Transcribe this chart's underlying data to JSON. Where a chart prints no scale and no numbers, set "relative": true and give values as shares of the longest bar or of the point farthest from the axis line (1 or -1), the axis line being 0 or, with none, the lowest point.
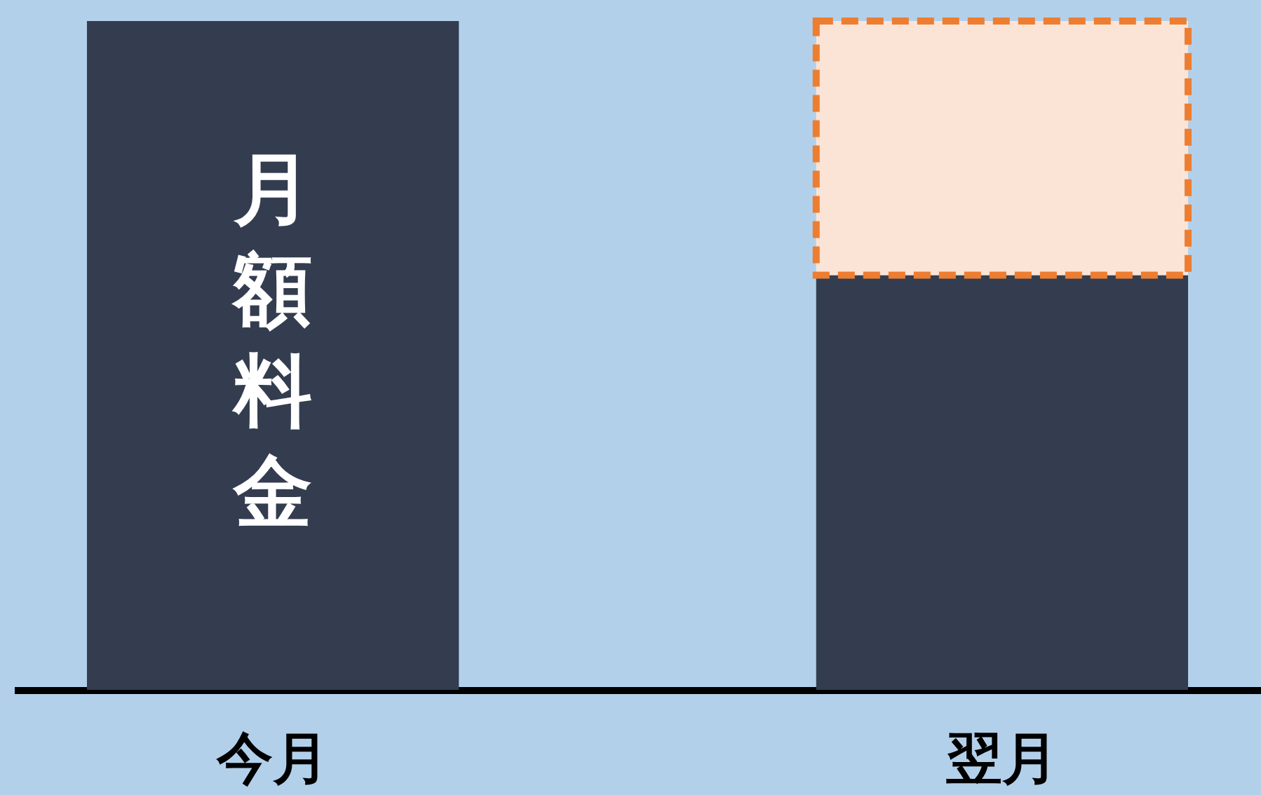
{
  "chart_data": {
    "type": "bar",
    "relative": true,
    "stacked": true,
    "categories": [
      "今月",
      "翌月"
    ],
    "series": [
      {
        "color": "#333d4f",
        "values": [
          1,
          0.62
        ]
      },
      {
        "color": "#fbe4d6",
        "values": [
          null,
          0.38
        ],
        "line_style": "dashed"
      }
    ],
    "annotations": [
      "月額料金"
    ]
  }
}
